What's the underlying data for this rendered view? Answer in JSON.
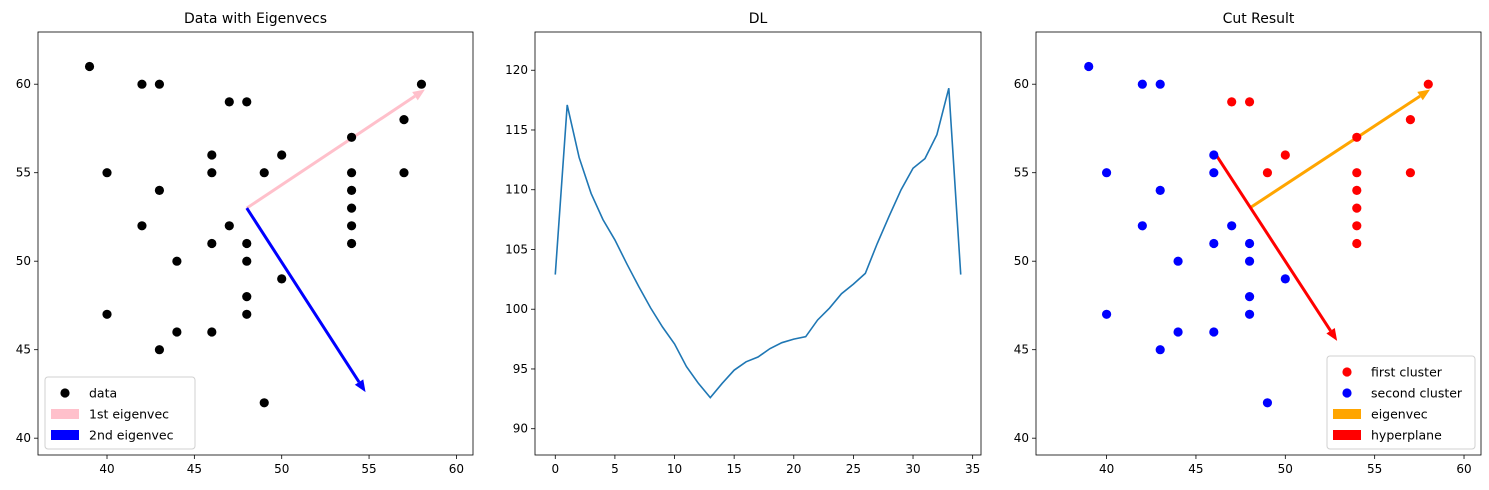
{
  "chart_data": [
    {
      "type": "scatter",
      "title": "Data with Eigenvecs",
      "xlim": [
        36.05,
        60.95
      ],
      "ylim": [
        39.05,
        62.95
      ],
      "xticks": [
        40,
        45,
        50,
        55,
        60
      ],
      "yticks": [
        40,
        45,
        50,
        55,
        60
      ],
      "legend_placement": "lower-left",
      "series": [
        {
          "name": "data",
          "color": "#000000",
          "points": [
            [
              39,
              61
            ],
            [
              42,
              60
            ],
            [
              43,
              60
            ],
            [
              47,
              59
            ],
            [
              48,
              59
            ],
            [
              58,
              60
            ],
            [
              57,
              58
            ],
            [
              54,
              57
            ],
            [
              46,
              56
            ],
            [
              50,
              56
            ],
            [
              40,
              55
            ],
            [
              46,
              55
            ],
            [
              49,
              55
            ],
            [
              54,
              55
            ],
            [
              57,
              55
            ],
            [
              43,
              54
            ],
            [
              54,
              54
            ],
            [
              54,
              53
            ],
            [
              42,
              52
            ],
            [
              47,
              52
            ],
            [
              54,
              52
            ],
            [
              46,
              51
            ],
            [
              48,
              51
            ],
            [
              54,
              51
            ],
            [
              44,
              50
            ],
            [
              48,
              50
            ],
            [
              50,
              49
            ],
            [
              48,
              48
            ],
            [
              40,
              47
            ],
            [
              48,
              47
            ],
            [
              44,
              46
            ],
            [
              46,
              46
            ],
            [
              43,
              45
            ],
            [
              49,
              42
            ]
          ]
        }
      ],
      "arrows": [
        {
          "name": "1st eigenvec",
          "color": "#ffc0cb",
          "from": [
            48,
            53
          ],
          "to": [
            58.2,
            59.7
          ]
        },
        {
          "name": "2nd eigenvec",
          "color": "#0000ff",
          "from": [
            48,
            53
          ],
          "to": [
            54.8,
            42.6
          ]
        }
      ]
    },
    {
      "type": "line",
      "title": "DL",
      "xlim": [
        -1.7,
        35.7
      ],
      "ylim": [
        87.8,
        123.2
      ],
      "xticks": [
        0,
        5,
        10,
        15,
        20,
        25,
        30,
        35
      ],
      "yticks": [
        90,
        95,
        100,
        105,
        110,
        115,
        120
      ],
      "series": [
        {
          "color": "#1f77b4",
          "x": [
            0,
            1,
            2,
            3,
            4,
            5,
            6,
            7,
            8,
            9,
            10,
            11,
            12,
            13,
            14,
            15,
            16,
            17,
            18,
            19,
            20,
            21,
            22,
            23,
            24,
            25,
            26,
            27,
            28,
            29,
            30,
            31,
            32,
            33,
            34
          ],
          "values": [
            102.9,
            117.1,
            112.7,
            109.7,
            107.5,
            105.8,
            103.8,
            101.9,
            100.1,
            98.5,
            97.1,
            95.2,
            93.8,
            92.6,
            93.8,
            94.9,
            95.6,
            96.0,
            96.7,
            97.2,
            97.5,
            97.7,
            99.1,
            100.1,
            101.3,
            102.1,
            103.0,
            105.5,
            107.8,
            110.0,
            111.8,
            112.6,
            114.6,
            118.5,
            102.9
          ]
        }
      ]
    },
    {
      "type": "scatter",
      "title": "Cut Result",
      "xlim": [
        36.05,
        60.95
      ],
      "ylim": [
        39.05,
        62.95
      ],
      "xticks": [
        40,
        45,
        50,
        55,
        60
      ],
      "yticks": [
        40,
        45,
        50,
        55,
        60
      ],
      "legend_placement": "lower-right",
      "series": [
        {
          "name": "first cluster",
          "color": "#ff0000",
          "points": [
            [
              47,
              59
            ],
            [
              48,
              59
            ],
            [
              58,
              60
            ],
            [
              57,
              58
            ],
            [
              54,
              57
            ],
            [
              50,
              56
            ],
            [
              49,
              55
            ],
            [
              54,
              55
            ],
            [
              57,
              55
            ],
            [
              54,
              54
            ],
            [
              54,
              53
            ],
            [
              54,
              52
            ],
            [
              54,
              51
            ]
          ]
        },
        {
          "name": "second cluster",
          "color": "#0000ff",
          "points": [
            [
              39,
              61
            ],
            [
              42,
              60
            ],
            [
              43,
              60
            ],
            [
              46,
              56
            ],
            [
              40,
              55
            ],
            [
              46,
              55
            ],
            [
              43,
              54
            ],
            [
              42,
              52
            ],
            [
              47,
              52
            ],
            [
              46,
              51
            ],
            [
              48,
              51
            ],
            [
              44,
              50
            ],
            [
              48,
              50
            ],
            [
              50,
              49
            ],
            [
              48,
              48
            ],
            [
              40,
              47
            ],
            [
              48,
              47
            ],
            [
              44,
              46
            ],
            [
              46,
              46
            ],
            [
              43,
              45
            ],
            [
              49,
              42
            ]
          ]
        }
      ],
      "arrows": [
        {
          "name": "eigenvec",
          "color": "#ffa500",
          "from": [
            48,
            53
          ],
          "to": [
            58.1,
            59.7
          ]
        },
        {
          "name": "hyperplane",
          "color": "#ff0000",
          "from": [
            46,
            56.2
          ],
          "to": [
            52.9,
            45.5
          ]
        }
      ]
    }
  ]
}
